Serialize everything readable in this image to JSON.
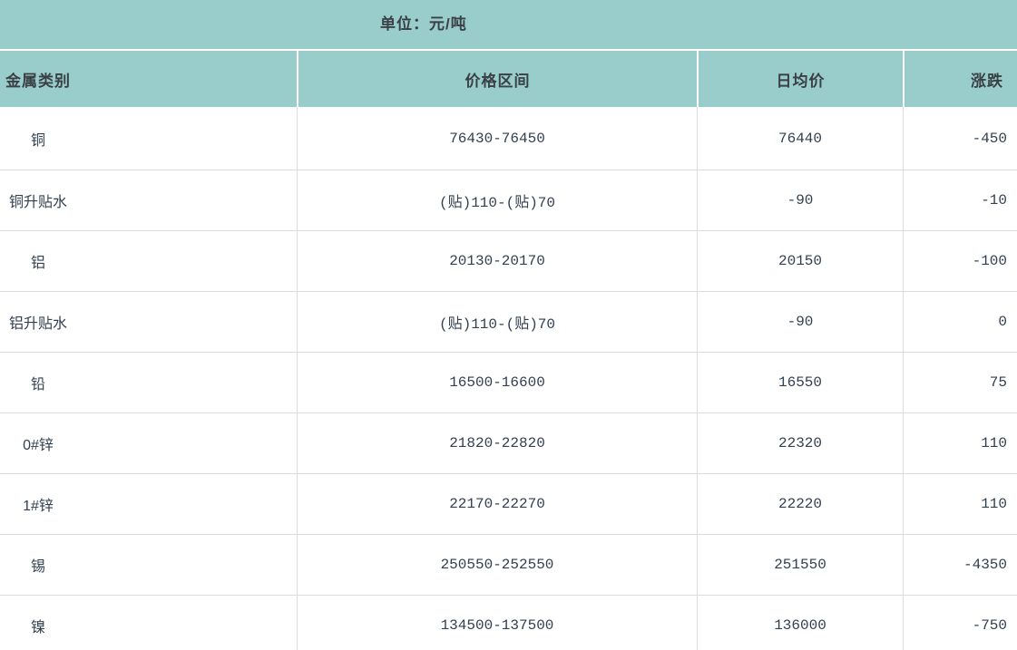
{
  "caption": "单位：元/吨",
  "colors": {
    "header_bg": "#99cdcb",
    "header_text": "#3a4045",
    "body_text": "#334050",
    "divider": "#dcdcdc",
    "row_bg": "#ffffff"
  },
  "chart_data": {
    "type": "table",
    "title": "单位：元/吨",
    "columns": [
      "金属类别",
      "价格区间",
      "日均价",
      "涨跌"
    ],
    "rows": [
      [
        "铜",
        "76430-76450",
        "76440",
        "-450"
      ],
      [
        "铜升贴水",
        "(贴)110-(贴)70",
        "-90",
        "-10"
      ],
      [
        "铝",
        "20130-20170",
        "20150",
        "-100"
      ],
      [
        "铝升贴水",
        "(贴)110-(贴)70",
        "-90",
        "0"
      ],
      [
        "铅",
        "16500-16600",
        "16550",
        "75"
      ],
      [
        "0#锌",
        "21820-22820",
        "22320",
        "110"
      ],
      [
        "1#锌",
        "22170-22270",
        "22220",
        "110"
      ],
      [
        "锡",
        "250550-252550",
        "251550",
        "-4350"
      ],
      [
        "镍",
        "134500-137500",
        "136000",
        "-750"
      ]
    ],
    "layout": {
      "column_alignments": [
        "center-left-box",
        "center",
        "center",
        "right"
      ],
      "grid": "light-gray row and column dividers",
      "header_style": "teal band with white separators"
    }
  }
}
